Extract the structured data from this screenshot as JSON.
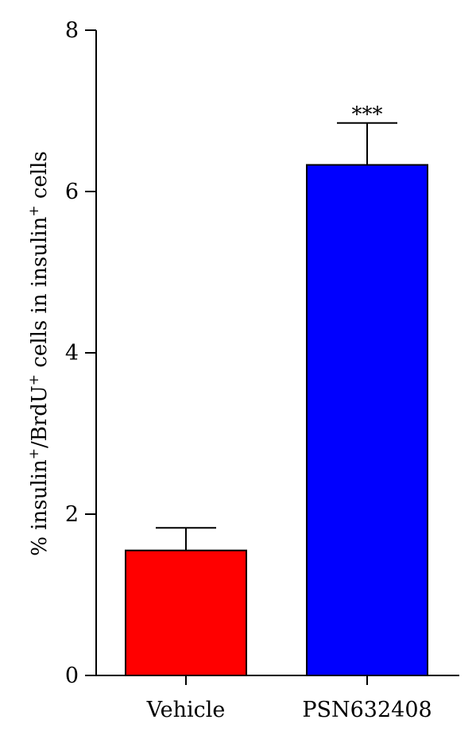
{
  "chart_data": {
    "type": "bar",
    "categories": [
      "Vehicle",
      "PSN632408"
    ],
    "values": [
      1.55,
      6.33
    ],
    "errors": [
      0.28,
      0.52
    ],
    "colors": [
      "#ff0000",
      "#0000ff"
    ],
    "ylabel_parts": [
      {
        "text": "% insulin",
        "sup": false
      },
      {
        "text": "+",
        "sup": true
      },
      {
        "text": "/BrdU",
        "sup": false
      },
      {
        "text": "+",
        "sup": true
      },
      {
        "text": " cells in insulin",
        "sup": false
      },
      {
        "text": "+",
        "sup": true
      },
      {
        "text": " cells",
        "sup": false
      }
    ],
    "ylim": [
      0,
      8
    ],
    "yticks": [
      "0",
      "2",
      "4",
      "6",
      "8"
    ],
    "annotations": [
      {
        "category": "PSN632408",
        "text": "***"
      }
    ],
    "grid": false,
    "legend": "none"
  }
}
